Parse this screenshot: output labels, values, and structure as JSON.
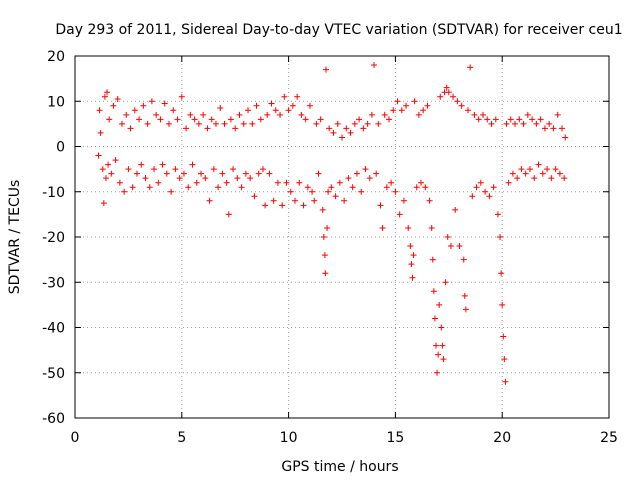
{
  "chart_data": {
    "type": "scatter",
    "title": "Day 293 of 2011, Sidereal Day-to-day VTEC variation (SDTVAR) for receiver ceu1",
    "xlabel": "GPS time / hours",
    "ylabel": "SDTVAR / TECUs",
    "xlim": [
      0,
      25
    ],
    "ylim": [
      -60,
      20
    ],
    "xticks": [
      0,
      5,
      10,
      15,
      20,
      25
    ],
    "xtick_labels": [
      "0",
      "5",
      "10",
      "15",
      "20",
      "25"
    ],
    "yticks": [
      -60,
      -50,
      -40,
      -30,
      -20,
      -10,
      0,
      10,
      20
    ],
    "ytick_labels": [
      "-60",
      "-50",
      "-40",
      "-30",
      "-20",
      "-10",
      "0",
      "10",
      "20"
    ],
    "grid": true,
    "marker": "+",
    "color": "#ff0000",
    "series": [
      {
        "name": "SDTVAR",
        "points": [
          [
            1.1,
            -2
          ],
          [
            1.15,
            8
          ],
          [
            1.2,
            3
          ],
          [
            1.3,
            -5
          ],
          [
            1.35,
            -12.5
          ],
          [
            1.4,
            11
          ],
          [
            1.45,
            -7
          ],
          [
            1.5,
            12
          ],
          [
            1.55,
            -4
          ],
          [
            1.6,
            6
          ],
          [
            1.7,
            -6
          ],
          [
            1.8,
            9
          ],
          [
            1.9,
            -3
          ],
          [
            2.0,
            10.5
          ],
          [
            2.1,
            -8
          ],
          [
            2.2,
            5
          ],
          [
            2.3,
            -10
          ],
          [
            2.4,
            7
          ],
          [
            2.5,
            -5
          ],
          [
            2.6,
            4
          ],
          [
            2.7,
            -9
          ],
          [
            2.8,
            8
          ],
          [
            2.9,
            -6
          ],
          [
            3.0,
            6
          ],
          [
            3.1,
            -4
          ],
          [
            3.2,
            9
          ],
          [
            3.3,
            -7
          ],
          [
            3.4,
            5
          ],
          [
            3.5,
            -9
          ],
          [
            3.6,
            10
          ],
          [
            3.7,
            -5
          ],
          [
            3.8,
            7
          ],
          [
            3.9,
            -8
          ],
          [
            4.0,
            6
          ],
          [
            4.1,
            -4
          ],
          [
            4.2,
            9.5
          ],
          [
            4.3,
            -6
          ],
          [
            4.4,
            5
          ],
          [
            4.5,
            -10
          ],
          [
            4.6,
            8
          ],
          [
            4.7,
            -5
          ],
          [
            4.8,
            6
          ],
          [
            4.9,
            -7
          ],
          [
            5.0,
            11
          ],
          [
            5.1,
            -6
          ],
          [
            5.2,
            4
          ],
          [
            5.3,
            -9
          ],
          [
            5.4,
            7
          ],
          [
            5.5,
            -4
          ],
          [
            5.6,
            6
          ],
          [
            5.7,
            -8
          ],
          [
            5.8,
            5
          ],
          [
            5.9,
            -6
          ],
          [
            6.0,
            7
          ],
          [
            6.1,
            -7
          ],
          [
            6.2,
            4
          ],
          [
            6.3,
            -12
          ],
          [
            6.4,
            6
          ],
          [
            6.5,
            -5
          ],
          [
            6.6,
            5
          ],
          [
            6.7,
            -9
          ],
          [
            6.8,
            8.5
          ],
          [
            6.9,
            -6
          ],
          [
            7.0,
            5
          ],
          [
            7.1,
            -8
          ],
          [
            7.2,
            -15
          ],
          [
            7.3,
            6
          ],
          [
            7.4,
            -5
          ],
          [
            7.5,
            4
          ],
          [
            7.6,
            -7
          ],
          [
            7.7,
            7
          ],
          [
            7.8,
            -9
          ],
          [
            7.9,
            5
          ],
          [
            8.0,
            -6
          ],
          [
            8.1,
            8
          ],
          [
            8.2,
            -7
          ],
          [
            8.3,
            5
          ],
          [
            8.4,
            -11
          ],
          [
            8.5,
            9
          ],
          [
            8.6,
            -6
          ],
          [
            8.7,
            6
          ],
          [
            8.8,
            -5
          ],
          [
            8.9,
            -13
          ],
          [
            9.0,
            7
          ],
          [
            9.1,
            -6
          ],
          [
            9.2,
            9.5
          ],
          [
            9.3,
            -12
          ],
          [
            9.4,
            8
          ],
          [
            9.5,
            -8
          ],
          [
            9.6,
            7
          ],
          [
            9.7,
            -13
          ],
          [
            9.8,
            11
          ],
          [
            9.9,
            -8
          ],
          [
            10.0,
            8
          ],
          [
            10.1,
            -10
          ],
          [
            10.2,
            9
          ],
          [
            10.3,
            -12
          ],
          [
            10.4,
            11
          ],
          [
            10.5,
            -8
          ],
          [
            10.6,
            7
          ],
          [
            10.7,
            -13
          ],
          [
            10.8,
            6
          ],
          [
            10.9,
            -9
          ],
          [
            11.0,
            9
          ],
          [
            11.1,
            -10
          ],
          [
            11.2,
            -12
          ],
          [
            11.3,
            5
          ],
          [
            11.4,
            -6
          ],
          [
            11.5,
            6
          ],
          [
            11.6,
            -14
          ],
          [
            11.65,
            -20
          ],
          [
            11.7,
            -24
          ],
          [
            11.72,
            -28
          ],
          [
            11.75,
            17
          ],
          [
            11.8,
            -18
          ],
          [
            11.85,
            -10
          ],
          [
            11.9,
            4
          ],
          [
            12.0,
            -9
          ],
          [
            12.1,
            3
          ],
          [
            12.2,
            -11
          ],
          [
            12.3,
            5
          ],
          [
            12.4,
            -8
          ],
          [
            12.5,
            2
          ],
          [
            12.6,
            -12
          ],
          [
            12.7,
            4
          ],
          [
            12.8,
            -7
          ],
          [
            12.9,
            3
          ],
          [
            13.0,
            -9
          ],
          [
            13.1,
            5
          ],
          [
            13.2,
            -6
          ],
          [
            13.3,
            6
          ],
          [
            13.4,
            -10
          ],
          [
            13.5,
            4
          ],
          [
            13.6,
            -5
          ],
          [
            13.7,
            5
          ],
          [
            13.8,
            -7
          ],
          [
            13.9,
            7
          ],
          [
            14.0,
            18
          ],
          [
            14.1,
            -6
          ],
          [
            14.2,
            5
          ],
          [
            14.3,
            -13
          ],
          [
            14.4,
            -18
          ],
          [
            14.5,
            7
          ],
          [
            14.6,
            -9
          ],
          [
            14.7,
            6
          ],
          [
            14.8,
            -8
          ],
          [
            14.9,
            8
          ],
          [
            15.0,
            -10
          ],
          [
            15.1,
            10
          ],
          [
            15.2,
            -15
          ],
          [
            15.3,
            8
          ],
          [
            15.4,
            -12
          ],
          [
            15.5,
            9
          ],
          [
            15.6,
            -18
          ],
          [
            15.7,
            -22
          ],
          [
            15.75,
            -26
          ],
          [
            15.8,
            -29
          ],
          [
            15.85,
            -24
          ],
          [
            15.9,
            10
          ],
          [
            16.0,
            -9
          ],
          [
            16.1,
            7
          ],
          [
            16.2,
            -8
          ],
          [
            16.3,
            8
          ],
          [
            16.4,
            -9
          ],
          [
            16.5,
            9
          ],
          [
            16.6,
            -12
          ],
          [
            16.7,
            -18
          ],
          [
            16.75,
            -25
          ],
          [
            16.8,
            -32
          ],
          [
            16.85,
            -38
          ],
          [
            16.9,
            -44
          ],
          [
            16.95,
            -50
          ],
          [
            17.0,
            -46
          ],
          [
            17.05,
            -35
          ],
          [
            17.1,
            11
          ],
          [
            17.15,
            -40
          ],
          [
            17.2,
            -44
          ],
          [
            17.25,
            -47
          ],
          [
            17.3,
            12
          ],
          [
            17.35,
            -30
          ],
          [
            17.4,
            13
          ],
          [
            17.45,
            -20
          ],
          [
            17.5,
            12
          ],
          [
            17.6,
            -22
          ],
          [
            17.7,
            11
          ],
          [
            17.8,
            -14
          ],
          [
            17.9,
            10
          ],
          [
            18.0,
            -22
          ],
          [
            18.1,
            9
          ],
          [
            18.2,
            -25
          ],
          [
            18.25,
            -33
          ],
          [
            18.3,
            -36
          ],
          [
            18.4,
            8
          ],
          [
            18.5,
            17.5
          ],
          [
            18.6,
            -11
          ],
          [
            18.7,
            7
          ],
          [
            18.8,
            -9
          ],
          [
            18.9,
            6
          ],
          [
            19.0,
            -8
          ],
          [
            19.1,
            7
          ],
          [
            19.2,
            -10
          ],
          [
            19.3,
            6
          ],
          [
            19.4,
            -11
          ],
          [
            19.5,
            5
          ],
          [
            19.6,
            -9
          ],
          [
            19.7,
            6
          ],
          [
            19.8,
            -15
          ],
          [
            19.9,
            -20
          ],
          [
            19.95,
            -28
          ],
          [
            20.0,
            -35
          ],
          [
            20.05,
            -42
          ],
          [
            20.1,
            -47
          ],
          [
            20.15,
            -52
          ],
          [
            20.2,
            5
          ],
          [
            20.3,
            -8
          ],
          [
            20.4,
            6
          ],
          [
            20.5,
            -6
          ],
          [
            20.6,
            5
          ],
          [
            20.7,
            -7
          ],
          [
            20.8,
            6
          ],
          [
            20.9,
            -5
          ],
          [
            21.0,
            5
          ],
          [
            21.1,
            -6
          ],
          [
            21.2,
            7
          ],
          [
            21.3,
            -5
          ],
          [
            21.4,
            6
          ],
          [
            21.5,
            -7
          ],
          [
            21.6,
            5
          ],
          [
            21.7,
            -4
          ],
          [
            21.8,
            6
          ],
          [
            21.9,
            -6
          ],
          [
            22.0,
            4
          ],
          [
            22.1,
            -5
          ],
          [
            22.2,
            5
          ],
          [
            22.3,
            -7
          ],
          [
            22.4,
            4
          ],
          [
            22.5,
            -5
          ],
          [
            22.6,
            7
          ],
          [
            22.7,
            -6
          ],
          [
            22.8,
            4
          ],
          [
            22.9,
            -7
          ],
          [
            22.95,
            2
          ]
        ]
      }
    ]
  }
}
